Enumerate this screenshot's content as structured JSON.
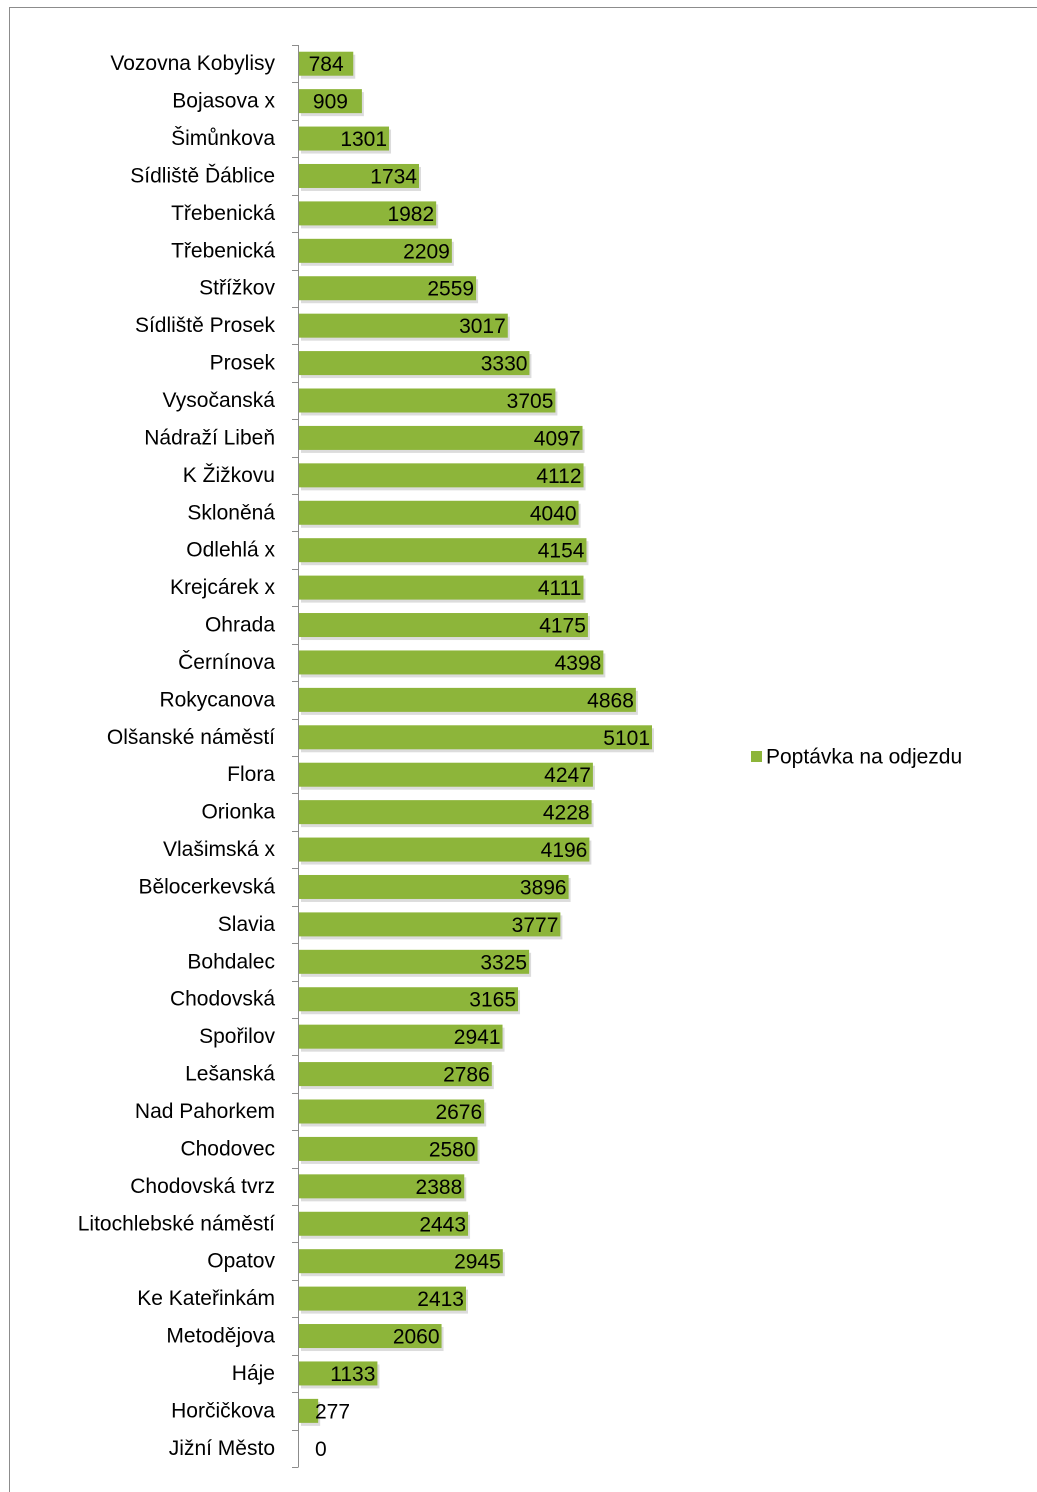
{
  "chart_data": {
    "type": "bar",
    "orientation": "horizontal",
    "title": "",
    "xlabel": "",
    "ylabel": "",
    "grid": false,
    "legend_position": "right",
    "bar_color": "#8DB53A",
    "xlim": [
      0,
      5500
    ],
    "categories": [
      "Vozovna Kobylisy",
      "Bojasova x",
      "Šimůnkova",
      "Sídliště Ďáblice",
      "Třebenická",
      "Třebenická",
      "Střížkov",
      "Sídliště Prosek",
      "Prosek",
      "Vysočanská",
      "Nádraží Libeň",
      "K Žižkovu",
      "Skloněná",
      "Odlehlá x",
      "Krejcárek x",
      "Ohrada",
      "Černínova",
      "Rokycanova",
      "Olšanské náměstí",
      "Flora",
      "Orionka",
      "Vlašimská x",
      "Bělocerkevská",
      "Slavia",
      "Bohdalec",
      "Chodovská",
      "Spořilov",
      "Lešanská",
      "Nad Pahorkem",
      "Chodovec",
      "Chodovská tvrz",
      "Litochlebské náměstí",
      "Opatov",
      "Ke Kateřinkám",
      "Metodějova",
      "Háje",
      "Horčičkova",
      "Jižní Město"
    ],
    "series": [
      {
        "name": "Poptávka na odjezdu",
        "values": [
          784,
          909,
          1301,
          1734,
          1982,
          2209,
          2559,
          3017,
          3330,
          3705,
          4097,
          4112,
          4040,
          4154,
          4111,
          4175,
          4398,
          4868,
          5101,
          4247,
          4228,
          4196,
          3896,
          3777,
          3325,
          3165,
          2941,
          2786,
          2676,
          2580,
          2388,
          2443,
          2945,
          2413,
          2060,
          1133,
          277,
          0
        ]
      }
    ]
  }
}
